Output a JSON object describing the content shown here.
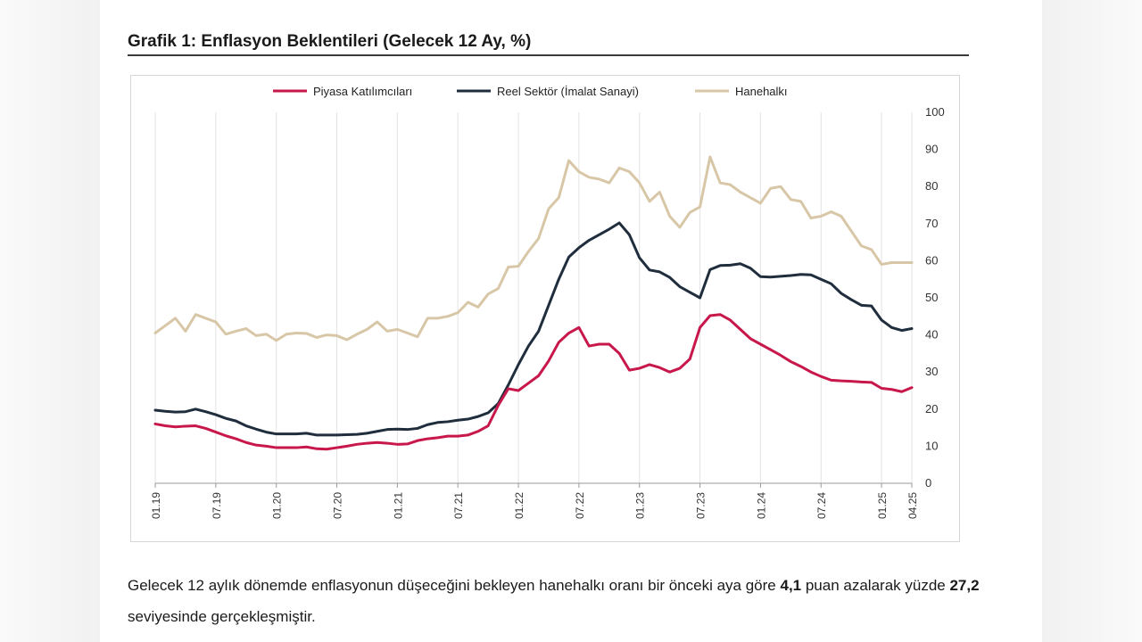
{
  "figure": {
    "title": "Grafik 1: Enflasyon Beklentileri (Gelecek 12 Ay, %)"
  },
  "paragraph": {
    "part1": "Gelecek 12 aylık dönemde enflasyonun düşeceğini bekleyen hanehalkı oranı bir önceki aya göre ",
    "value1": "4,1",
    "part2": " puan azalarak yüzde ",
    "value2": "27,2",
    "part3": " seviyesinde gerçekleşmiştir."
  },
  "chart_data": {
    "type": "line",
    "title": "Grafik 1: Enflasyon Beklentileri (Gelecek 12 Ay, %)",
    "x_tick_labels": [
      "01.19",
      "07.19",
      "01.20",
      "07.20",
      "01.21",
      "07.21",
      "01.22",
      "07.22",
      "01.23",
      "07.23",
      "01.24",
      "07.24",
      "01.25",
      "04.25"
    ],
    "x": [
      "01.19",
      "02.19",
      "03.19",
      "04.19",
      "05.19",
      "06.19",
      "07.19",
      "08.19",
      "09.19",
      "10.19",
      "11.19",
      "12.19",
      "01.20",
      "02.20",
      "03.20",
      "04.20",
      "05.20",
      "06.20",
      "07.20",
      "08.20",
      "09.20",
      "10.20",
      "11.20",
      "12.20",
      "01.21",
      "02.21",
      "03.21",
      "04.21",
      "05.21",
      "06.21",
      "07.21",
      "08.21",
      "09.21",
      "10.21",
      "11.21",
      "12.21",
      "01.22",
      "02.22",
      "03.22",
      "04.22",
      "05.22",
      "06.22",
      "07.22",
      "08.22",
      "09.22",
      "10.22",
      "11.22",
      "12.22",
      "01.23",
      "02.23",
      "03.23",
      "04.23",
      "05.23",
      "06.23",
      "07.23",
      "08.23",
      "09.23",
      "10.23",
      "11.23",
      "12.23",
      "01.24",
      "02.24",
      "03.24",
      "04.24",
      "05.24",
      "06.24",
      "07.24",
      "08.24",
      "09.24",
      "10.24",
      "11.24",
      "12.24",
      "01.25",
      "02.25",
      "03.25",
      "04.25"
    ],
    "ylim": [
      0,
      100
    ],
    "y_ticks": [
      0,
      10,
      20,
      30,
      40,
      50,
      60,
      70,
      80,
      90,
      100
    ],
    "y_axis_position": "right",
    "grid": "vertical",
    "legend_position": "top",
    "series": [
      {
        "name": "Piyasa Katılımcıları",
        "color": "#c8174a",
        "values": [
          16.0,
          15.5,
          15.2,
          15.4,
          15.5,
          14.8,
          13.8,
          12.8,
          12.0,
          11.0,
          10.3,
          10.0,
          9.6,
          9.6,
          9.6,
          9.8,
          9.3,
          9.2,
          9.6,
          10.0,
          10.5,
          10.8,
          11.0,
          10.8,
          10.5,
          10.6,
          11.5,
          12.0,
          12.3,
          12.7,
          12.7,
          13.0,
          14.0,
          15.5,
          21.0,
          25.5,
          25.0,
          27.0,
          29.0,
          33.0,
          38.0,
          40.5,
          42.0,
          37.0,
          37.5,
          37.5,
          35.0,
          30.5,
          31.0,
          32.0,
          31.2,
          30.0,
          31.0,
          33.5,
          42.0,
          45.2,
          45.5,
          44.0,
          41.5,
          39.0,
          37.5,
          36.0,
          34.5,
          32.8,
          31.5,
          30.0,
          28.8,
          27.8,
          27.6,
          27.5,
          27.3,
          27.2,
          25.6,
          25.3,
          24.7,
          25.8
        ]
      },
      {
        "name": "Reel Sektör (İmalat Sanayi)",
        "color": "#1f2d3d",
        "values": [
          19.7,
          19.4,
          19.2,
          19.3,
          20.0,
          19.3,
          18.5,
          17.5,
          16.8,
          15.5,
          14.6,
          13.8,
          13.3,
          13.3,
          13.3,
          13.5,
          13.0,
          13.0,
          13.0,
          13.1,
          13.2,
          13.5,
          14.0,
          14.5,
          14.6,
          14.5,
          14.8,
          15.8,
          16.4,
          16.6,
          17.0,
          17.3,
          18.0,
          19.0,
          21.5,
          26.5,
          32.0,
          37.0,
          41.0,
          48.0,
          55.0,
          61.0,
          63.5,
          65.5,
          67.0,
          68.5,
          70.2,
          67.0,
          60.8,
          57.5,
          57.0,
          55.5,
          53.0,
          51.5,
          50.0,
          57.6,
          58.7,
          58.8,
          59.2,
          58.0,
          55.7,
          55.6,
          55.8,
          56.0,
          56.3,
          56.2,
          55.0,
          53.8,
          51.2,
          49.5,
          48.0,
          47.8,
          44.0,
          42.0,
          41.2,
          41.7
        ]
      },
      {
        "name": "Hanehalkı",
        "color": "#d8c7a7",
        "values": [
          40.5,
          42.5,
          44.5,
          41.0,
          45.5,
          44.5,
          43.5,
          40.2,
          41.0,
          41.7,
          39.8,
          40.2,
          38.5,
          40.2,
          40.5,
          40.4,
          39.3,
          40.0,
          39.8,
          38.7,
          40.2,
          41.5,
          43.5,
          41.0,
          41.5,
          40.5,
          39.5,
          44.5,
          44.5,
          45.0,
          46.0,
          48.8,
          47.5,
          51.0,
          52.5,
          58.3,
          58.5,
          62.5,
          66.0,
          74.0,
          77.0,
          87.0,
          84.0,
          82.5,
          82.0,
          81.0,
          85.0,
          84.0,
          81.0,
          76.0,
          78.5,
          72.0,
          69.0,
          73.0,
          74.5,
          88.0,
          81.0,
          80.5,
          78.5,
          77.0,
          75.5,
          79.5,
          80.0,
          76.5,
          76.0,
          71.5,
          72.0,
          73.2,
          72.0,
          68.0,
          64.0,
          63.0,
          59.0,
          59.5,
          59.5,
          59.5
        ]
      }
    ]
  }
}
